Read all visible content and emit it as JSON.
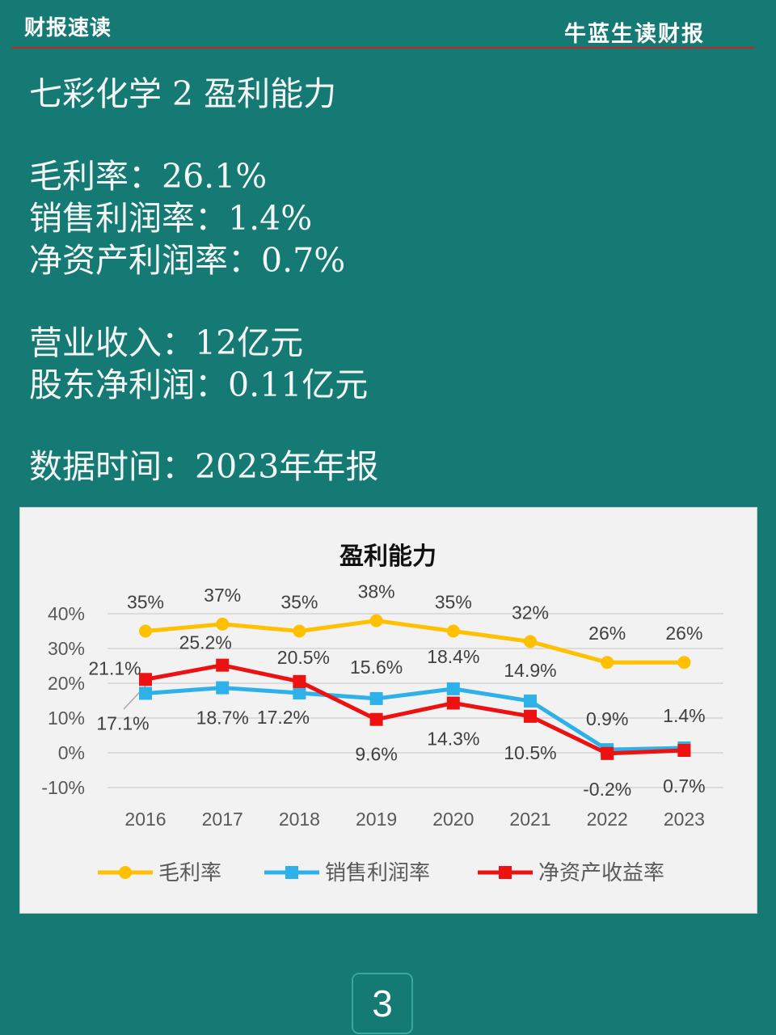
{
  "header": {
    "left": "财报速读",
    "right": "牛蓝生读财报"
  },
  "lines": {
    "title": "七彩化学 2 盈利能力",
    "gross_margin": "毛利率：26.1%",
    "net_margin": "销售利润率：1.4%",
    "roe": "净资产利润率：0.7%",
    "revenue": "营业收入：12亿元",
    "net_profit": "股东净利润：0.11亿元",
    "data_time": "数据时间：2023年年报"
  },
  "page_number": "3",
  "chart_data": {
    "type": "line",
    "title": "盈利能力",
    "categories": [
      "2016",
      "2017",
      "2018",
      "2019",
      "2020",
      "2021",
      "2022",
      "2023"
    ],
    "ylim": [
      -10,
      40
    ],
    "yticks": [
      40,
      30,
      20,
      10,
      0,
      -10
    ],
    "ytick_labels": [
      "40%",
      "30%",
      "20%",
      "10%",
      "0%",
      "-10%"
    ],
    "grid": true,
    "legend_position": "bottom",
    "series": [
      {
        "name": "毛利率",
        "color": "#ffc000",
        "marker": "circle",
        "values": [
          35,
          37,
          35,
          38,
          35,
          32,
          26,
          26
        ],
        "labels": [
          "35%",
          "37%",
          "35%",
          "38%",
          "35%",
          "32%",
          "26%",
          "26%"
        ]
      },
      {
        "name": "销售利润率",
        "color": "#2eb1e8",
        "marker": "square",
        "values": [
          17.1,
          18.7,
          17.2,
          15.6,
          18.4,
          14.9,
          0.9,
          1.4
        ],
        "labels": [
          "17.1%",
          "18.7%",
          "17.2%",
          "15.6%",
          "18.4%",
          "14.9%",
          "0.9%",
          "1.4%"
        ]
      },
      {
        "name": "净资产收益率",
        "color": "#ee1111",
        "marker": "square",
        "values": [
          21.1,
          25.2,
          20.5,
          9.6,
          14.3,
          10.5,
          -0.2,
          0.7
        ],
        "labels": [
          "21.1%",
          "25.2%",
          "20.5%",
          "9.6%",
          "14.3%",
          "10.5%",
          "-0.2%",
          "0.7%"
        ]
      }
    ]
  }
}
